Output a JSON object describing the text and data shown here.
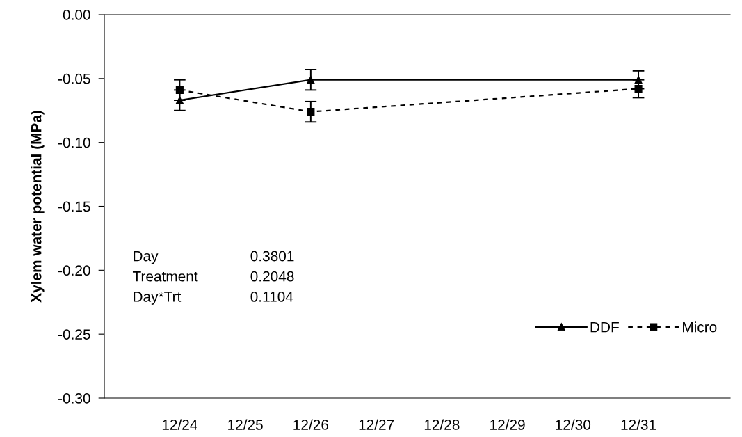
{
  "chart_data": {
    "type": "line",
    "ylabel": "Xylem water potential (MPa)",
    "categories": [
      "12/24",
      "12/25",
      "12/26",
      "12/27",
      "12/28",
      "12/29",
      "12/30",
      "12/31"
    ],
    "ylim": [
      -0.3,
      0.0
    ],
    "yticks": [
      {
        "value": -0.3,
        "label": "-0.30"
      },
      {
        "value": -0.25,
        "label": "-0.25"
      },
      {
        "value": -0.2,
        "label": "-0.20"
      },
      {
        "value": -0.15,
        "label": "-0.15"
      },
      {
        "value": -0.1,
        "label": "-0.10"
      },
      {
        "value": -0.05,
        "label": "-0.05"
      },
      {
        "value": 0.0,
        "label": "0.00"
      }
    ],
    "series": [
      {
        "name": "DDF",
        "color": "#000000",
        "marker": "triangle",
        "line_style": "solid",
        "values": [
          -0.067,
          null,
          -0.051,
          null,
          null,
          null,
          null,
          -0.051
        ],
        "errors": [
          0.008,
          null,
          0.008,
          null,
          null,
          null,
          null,
          0.007
        ]
      },
      {
        "name": "Micro",
        "color": "#000000",
        "marker": "square",
        "line_style": "dotted",
        "values": [
          -0.059,
          null,
          -0.076,
          null,
          null,
          null,
          null,
          -0.058
        ],
        "errors": [
          0.008,
          null,
          0.008,
          null,
          null,
          null,
          null,
          0.007
        ]
      }
    ],
    "annotations": [
      "Day",
      "0.3801",
      "Treatment",
      "0.2048",
      "Day*Trt",
      "0.1104"
    ],
    "legend": "bottom right",
    "grid": false
  }
}
